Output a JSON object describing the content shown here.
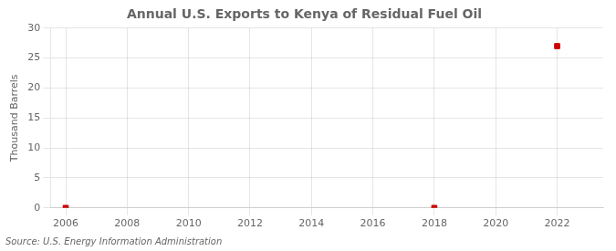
{
  "chart_data": {
    "type": "scatter",
    "title": "Annual U.S. Exports to Kenya of Residual Fuel Oil",
    "ylabel": "Thousand Barrels",
    "annotations": [
      "Source: U.S. Energy Information Administration"
    ],
    "x": [
      2006,
      2018,
      2022
    ],
    "values": [
      0,
      0,
      27
    ],
    "color": "#cc0000",
    "marker": "square",
    "xlim": [
      2005.5,
      2023.5
    ],
    "xticks": [
      2006,
      2008,
      2010,
      2012,
      2014,
      2016,
      2018,
      2020,
      2022
    ],
    "ylim": [
      0,
      30
    ],
    "yticks": [
      0,
      5,
      10,
      15,
      20,
      25,
      30
    ],
    "grid": true
  }
}
